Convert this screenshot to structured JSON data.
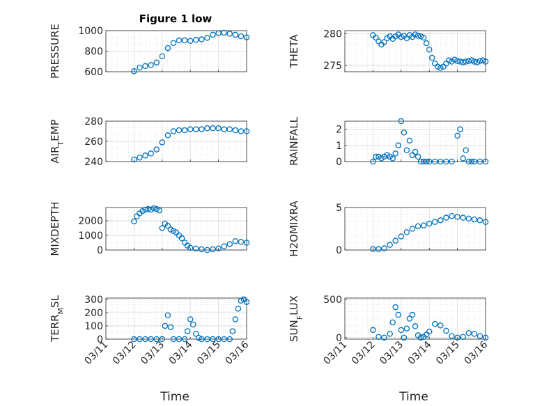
{
  "figure_title": "Figure 1 low",
  "x_axis_title": "Time",
  "x_tick_labels": [
    "03/11",
    "03/12",
    "03/13",
    "03/14",
    "03/15",
    "03/16"
  ],
  "marker_color": "#0072BD",
  "chart_data": [
    {
      "type": "scatter",
      "id": "pressure",
      "title": "Figure 1 low",
      "ylabel": "PRESSURE",
      "ylim": [
        600,
        1000
      ],
      "yticks": [
        600,
        800,
        1000
      ],
      "x": [
        1.0,
        1.2,
        1.4,
        1.6,
        1.8,
        2.0,
        2.2,
        2.4,
        2.6,
        2.8,
        3.0,
        3.2,
        3.4,
        3.6,
        3.8,
        4.0,
        4.2,
        4.4,
        4.6,
        4.8,
        5.0
      ],
      "y": [
        605,
        640,
        655,
        665,
        690,
        750,
        830,
        880,
        905,
        905,
        900,
        910,
        915,
        930,
        960,
        975,
        980,
        970,
        960,
        945,
        935
      ]
    },
    {
      "type": "scatter",
      "id": "theta",
      "ylabel": "THETA",
      "ylim": [
        274,
        280.5
      ],
      "yticks": [
        275,
        280
      ],
      "x": [
        1.0,
        1.1,
        1.2,
        1.3,
        1.4,
        1.5,
        1.6,
        1.7,
        1.8,
        1.9,
        2.0,
        2.1,
        2.2,
        2.3,
        2.4,
        2.5,
        2.6,
        2.7,
        2.8,
        2.9,
        3.0,
        3.1,
        3.2,
        3.3,
        3.4,
        3.5,
        3.6,
        3.7,
        3.8,
        3.9,
        4.0,
        4.1,
        4.2,
        4.3,
        4.4,
        4.5,
        4.6,
        4.7,
        4.8,
        4.9,
        5.0
      ],
      "y": [
        279.8,
        279.4,
        278.8,
        278.3,
        278.7,
        279.3,
        279.6,
        279.2,
        279.6,
        279.9,
        279.5,
        279.7,
        279.3,
        279.8,
        279.5,
        279.9,
        279.7,
        279.6,
        279.4,
        278.5,
        277.5,
        276.2,
        275.3,
        274.8,
        274.6,
        274.8,
        275.3,
        275.8,
        275.6,
        275.9,
        275.7,
        275.6,
        275.5,
        275.6,
        275.7,
        275.8,
        275.6,
        275.5,
        275.7,
        275.8,
        275.6
      ]
    },
    {
      "type": "scatter",
      "id": "air_temp",
      "ylabel": "AIR_TEMP",
      "ylim": [
        240,
        280
      ],
      "yticks": [
        240,
        260,
        280
      ],
      "x": [
        1.0,
        1.2,
        1.4,
        1.6,
        1.8,
        2.0,
        2.2,
        2.4,
        2.6,
        2.8,
        3.0,
        3.2,
        3.4,
        3.6,
        3.8,
        4.0,
        4.2,
        4.4,
        4.6,
        4.8,
        5.0
      ],
      "y": [
        242,
        244,
        246,
        248,
        252,
        259,
        266,
        270,
        271,
        271,
        272,
        272,
        272,
        273,
        273,
        273,
        272,
        272,
        271,
        270,
        270
      ]
    },
    {
      "type": "scatter",
      "id": "rainfall",
      "ylabel": "RAINFALL",
      "ylim": [
        0,
        2.5
      ],
      "yticks": [
        0,
        1,
        2
      ],
      "x": [
        1.0,
        1.1,
        1.2,
        1.3,
        1.4,
        1.5,
        1.6,
        1.7,
        1.8,
        1.9,
        2.0,
        2.1,
        2.2,
        2.3,
        2.4,
        2.5,
        2.6,
        2.7,
        2.8,
        2.9,
        3.0,
        3.2,
        3.4,
        3.6,
        3.8,
        4.0,
        4.1,
        4.2,
        4.3,
        4.4,
        4.5,
        4.6,
        4.8,
        5.0
      ],
      "y": [
        0,
        0.3,
        0.3,
        0.2,
        0.3,
        0.4,
        0.3,
        0.2,
        0.5,
        1.0,
        2.5,
        1.8,
        0.7,
        1.3,
        0.4,
        0.6,
        0.3,
        0,
        0,
        0,
        0,
        0,
        0,
        0,
        0,
        1.6,
        2.0,
        0.2,
        0.7,
        0,
        0,
        0,
        0,
        0
      ]
    },
    {
      "type": "scatter",
      "id": "mixdepth",
      "ylabel": "MIXDEPTH",
      "ylim": [
        0,
        2900
      ],
      "yticks": [
        0,
        1000,
        2000
      ],
      "x": [
        1.0,
        1.1,
        1.2,
        1.3,
        1.4,
        1.5,
        1.6,
        1.7,
        1.8,
        1.9,
        2.0,
        2.1,
        2.2,
        2.3,
        2.4,
        2.5,
        2.6,
        2.7,
        2.8,
        2.9,
        3.0,
        3.2,
        3.4,
        3.6,
        3.8,
        4.0,
        4.2,
        4.4,
        4.6,
        4.8,
        5.0
      ],
      "y": [
        1950,
        2300,
        2500,
        2650,
        2750,
        2800,
        2750,
        2850,
        2800,
        2700,
        1500,
        1800,
        1650,
        1400,
        1300,
        1200,
        1000,
        800,
        500,
        300,
        150,
        100,
        50,
        0,
        50,
        100,
        250,
        400,
        600,
        550,
        500
      ]
    },
    {
      "type": "scatter",
      "id": "h2omixra",
      "ylabel": "H2OMIXRA",
      "ylim": [
        0,
        5
      ],
      "yticks": [
        0,
        5
      ],
      "x": [
        1.0,
        1.2,
        1.4,
        1.6,
        1.8,
        2.0,
        2.2,
        2.4,
        2.6,
        2.8,
        3.0,
        3.2,
        3.4,
        3.6,
        3.8,
        4.0,
        4.2,
        4.4,
        4.6,
        4.8,
        5.0
      ],
      "y": [
        0.1,
        0.1,
        0.2,
        0.6,
        1.1,
        1.6,
        2.1,
        2.5,
        2.8,
        2.9,
        3.1,
        3.3,
        3.5,
        3.8,
        4.0,
        3.9,
        3.8,
        3.7,
        3.6,
        3.5,
        3.3
      ]
    },
    {
      "type": "scatter",
      "id": "terr_msl",
      "ylabel": "TERR_MSL",
      "ylim": [
        0,
        310
      ],
      "yticks": [
        0,
        100,
        200,
        300
      ],
      "x": [
        1.0,
        1.2,
        1.4,
        1.6,
        1.8,
        2.0,
        2.1,
        2.2,
        2.3,
        2.4,
        2.6,
        2.8,
        2.9,
        3.0,
        3.1,
        3.2,
        3.3,
        3.4,
        3.6,
        3.8,
        4.0,
        4.2,
        4.4,
        4.5,
        4.6,
        4.7,
        4.8,
        4.9,
        5.0
      ],
      "y": [
        0,
        0,
        0,
        0,
        0,
        0,
        100,
        180,
        90,
        0,
        0,
        0,
        60,
        150,
        110,
        40,
        10,
        0,
        0,
        0,
        0,
        0,
        0,
        60,
        150,
        230,
        290,
        300,
        280
      ]
    },
    {
      "type": "scatter",
      "id": "sun_flux",
      "ylabel": "SUN_FLUX",
      "ylim": [
        -20,
        520
      ],
      "yticks": [
        0,
        500
      ],
      "x": [
        1.0,
        1.2,
        1.4,
        1.6,
        1.7,
        1.8,
        1.9,
        2.0,
        2.1,
        2.2,
        2.3,
        2.4,
        2.5,
        2.6,
        2.7,
        2.8,
        2.9,
        3.0,
        3.2,
        3.4,
        3.6,
        3.8,
        4.0,
        4.2,
        4.4,
        4.6,
        4.8,
        5.0
      ],
      "y": [
        100,
        10,
        0,
        50,
        200,
        400,
        300,
        100,
        0,
        120,
        250,
        300,
        150,
        30,
        0,
        10,
        40,
        80,
        180,
        160,
        90,
        20,
        0,
        10,
        60,
        50,
        20,
        0
      ]
    }
  ]
}
